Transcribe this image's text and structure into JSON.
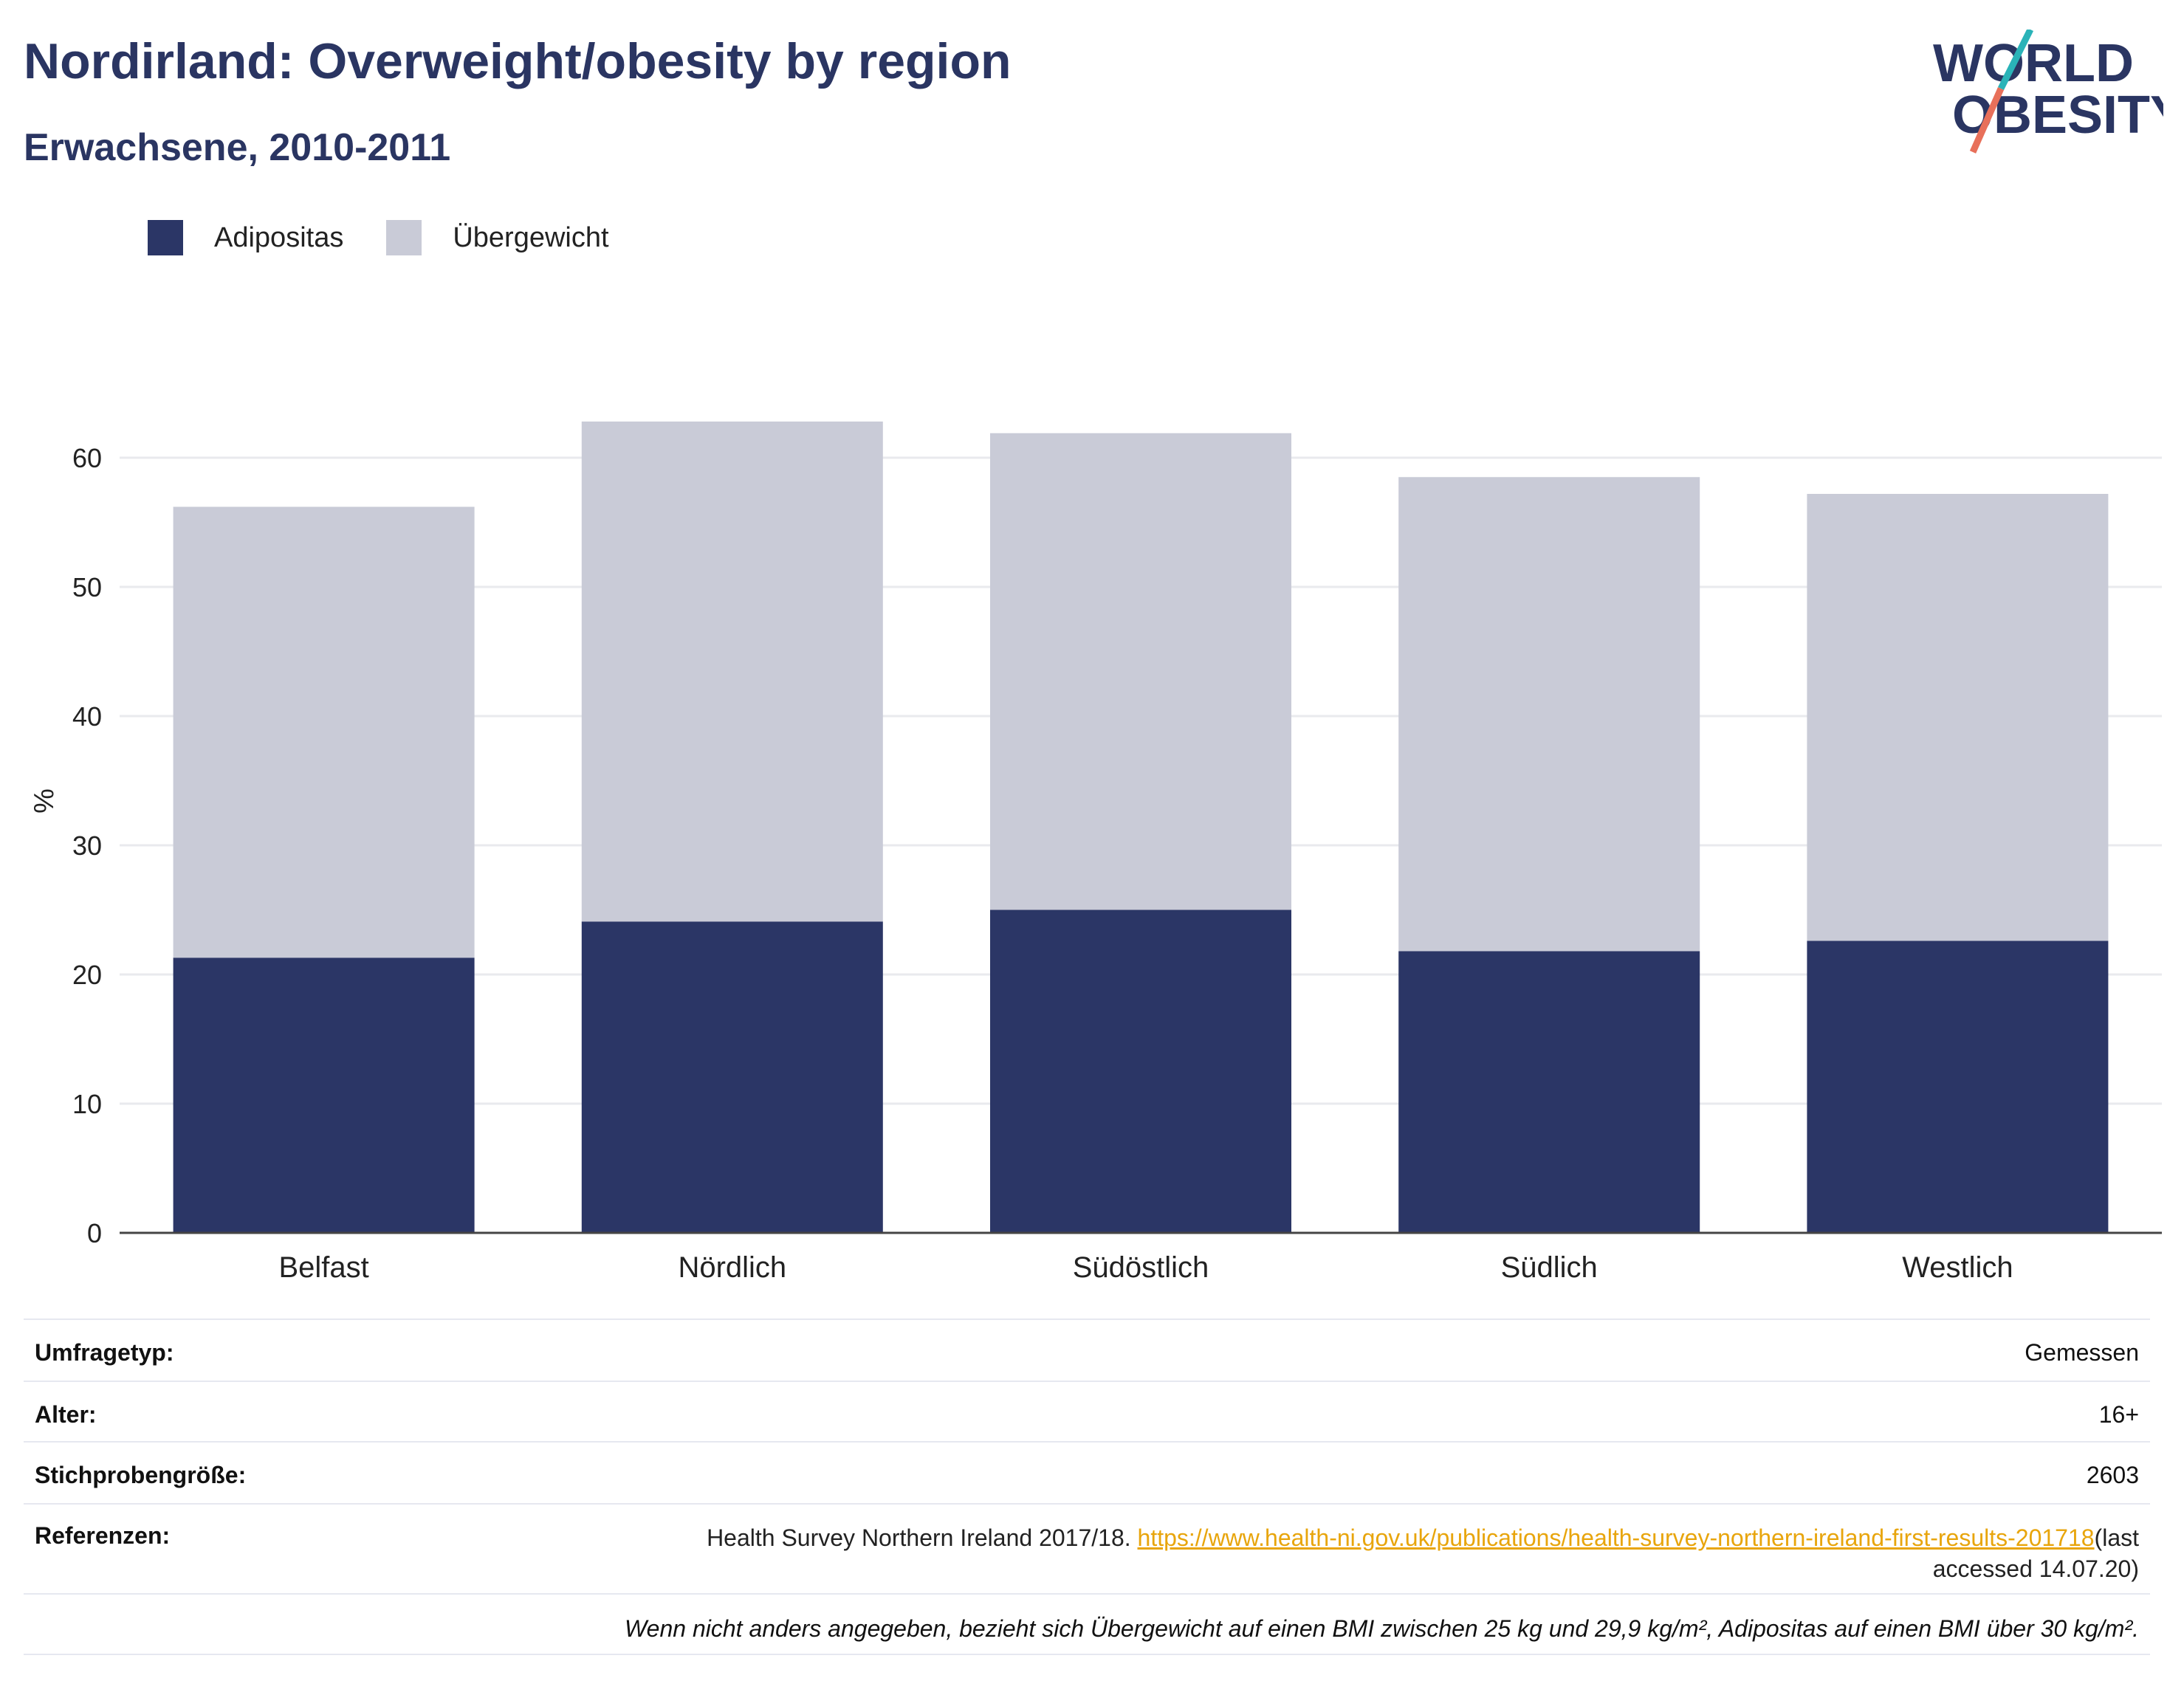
{
  "header": {
    "title": "Nordirland: Overweight/obesity by region",
    "subtitle": "Erwachsene, 2010-2011",
    "logo_line1": "WORLD",
    "logo_line2": "OBESITY"
  },
  "colors": {
    "title": "#2a3562",
    "obesity": "#2b3666",
    "overweight": "#c9cbd7",
    "grid": "#e9eaee",
    "link": "#e8a50c"
  },
  "legend": {
    "items": [
      {
        "label": "Adipositas"
      },
      {
        "label": "Übergewicht"
      }
    ]
  },
  "chart_data": {
    "type": "bar",
    "stacked": true,
    "categories": [
      "Belfast",
      "Nördlich",
      "Südöstlich",
      "Südlich",
      "Westlich"
    ],
    "series": [
      {
        "name": "Adipositas",
        "values": [
          21.3,
          24.1,
          25.0,
          21.8,
          22.6
        ]
      },
      {
        "name": "Übergewicht",
        "values": [
          34.9,
          38.7,
          36.9,
          36.7,
          34.6
        ]
      }
    ],
    "ylabel": "%",
    "yticks": [
      0,
      10,
      20,
      30,
      40,
      50,
      60
    ],
    "ylim": [
      0,
      68
    ],
    "grid": true,
    "legend_position": "top-left"
  },
  "meta": {
    "survey_type_label": "Umfragetyp:",
    "survey_type_value": "Gemessen",
    "age_label": "Alter:",
    "age_value": "16+",
    "sample_label": "Stichprobengröße:",
    "sample_value": "2603",
    "references_label": "Referenzen:",
    "reference_text": "Health Survey Northern Ireland 2017/18. ",
    "reference_link": "https://www.health-ni.gov.uk/publications/health-survey-northern-ireland-first-results-201718",
    "reference_suffix": "(last accessed 14.07.20)",
    "footnote": "Wenn nicht anders angegeben, bezieht sich Übergewicht auf einen BMI zwischen 25 kg und 29,9 kg/m², Adipositas auf einen BMI über 30 kg/m²."
  }
}
